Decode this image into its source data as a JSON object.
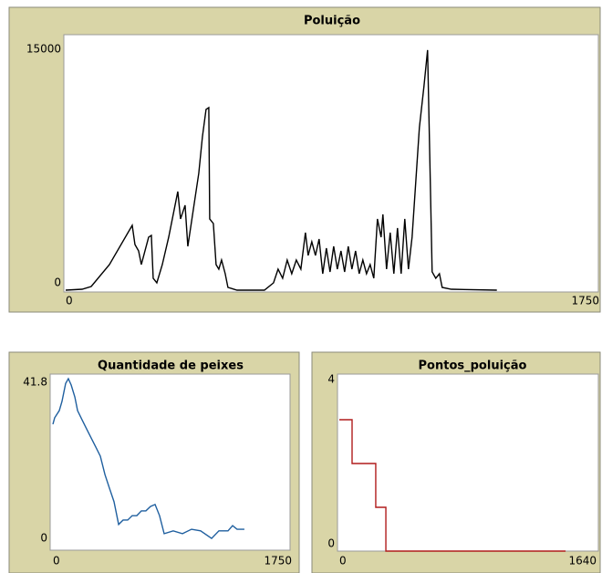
{
  "chart_data": [
    {
      "type": "line",
      "title": "Poluição",
      "color": "#000000",
      "x": [
        0,
        54,
        84,
        144,
        219,
        228,
        240,
        249,
        273,
        282,
        288,
        300,
        318,
        339,
        369,
        378,
        393,
        402,
        420,
        438,
        450,
        462,
        471,
        474,
        486,
        495,
        504,
        513,
        525,
        534,
        564,
        654,
        684,
        699,
        714,
        729,
        744,
        759,
        774,
        789,
        798,
        810,
        822,
        834,
        846,
        858,
        870,
        882,
        894,
        906,
        918,
        930,
        942,
        954,
        966,
        978,
        990,
        1002,
        1014,
        1026,
        1038,
        1044,
        1056,
        1068,
        1080,
        1092,
        1104,
        1116,
        1128,
        1140,
        1152,
        1164,
        1179,
        1191,
        1200,
        1206,
        1218,
        1230,
        1239,
        1269,
        1419
      ],
      "values": [
        0,
        56,
        224,
        1568,
        3976,
        2800,
        2408,
        1568,
        3248,
        3360,
        728,
        448,
        1568,
        3248,
        6048,
        4368,
        5208,
        2688,
        4928,
        7168,
        9408,
        11088,
        11200,
        4368,
        4088,
        1568,
        1288,
        1848,
        1008,
        168,
        0,
        0,
        448,
        1288,
        728,
        1848,
        1008,
        1848,
        1288,
        3528,
        2128,
        2968,
        2128,
        3136,
        1008,
        2576,
        1120,
        2688,
        1288,
        2408,
        1120,
        2688,
        1288,
        2408,
        1008,
        1848,
        1008,
        1568,
        728,
        4368,
        3248,
        4648,
        1288,
        3528,
        1008,
        3808,
        1008,
        4368,
        1288,
        3248,
        6608,
        9968,
        12488,
        14728,
        6608,
        1120,
        728,
        1008,
        168,
        56,
        0
      ],
      "xlim": [
        0,
        1750
      ],
      "ylim": [
        0,
        15000
      ],
      "xticks": [
        0,
        1750
      ],
      "yticks": [
        0,
        15000
      ]
    },
    {
      "type": "line",
      "title": "Quantidade de peixes",
      "color": "#1f5f9f",
      "x": [
        0,
        13,
        47,
        67,
        94,
        114,
        135,
        162,
        182,
        215,
        249,
        283,
        316,
        350,
        384,
        417,
        451,
        485,
        518,
        552,
        585,
        619,
        653,
        686,
        720,
        754,
        787,
        821,
        888,
        956,
        1023,
        1090,
        1171,
        1225,
        1292,
        1326,
        1359,
        1413
      ],
      "values": [
        30.4,
        32.0,
        33.8,
        36.1,
        40.6,
        41.8,
        40.2,
        37.2,
        33.8,
        31.5,
        29.2,
        26.9,
        24.7,
        22.4,
        17.8,
        14.4,
        11.0,
        5.3,
        6.4,
        6.4,
        7.5,
        7.5,
        8.7,
        8.7,
        9.8,
        10.3,
        7.5,
        3.0,
        3.7,
        3.0,
        4.1,
        3.7,
        1.8,
        3.7,
        3.7,
        5.0,
        4.1,
        4.1
      ],
      "xlim": [
        0,
        1750
      ],
      "ylim": [
        0,
        41.8
      ],
      "xticks": [
        0,
        1750
      ],
      "yticks": [
        0,
        41.8
      ]
    },
    {
      "type": "line",
      "title": "Pontos_poluição",
      "color": "#b01c1c",
      "step": true,
      "x": [
        0,
        82,
        234,
        299,
        1453
      ],
      "values": [
        3,
        2,
        1,
        0,
        0
      ],
      "xlim": [
        0,
        1640
      ],
      "ylim": [
        0,
        4
      ],
      "xticks": [
        0,
        1640
      ],
      "yticks": [
        0,
        4
      ]
    }
  ]
}
